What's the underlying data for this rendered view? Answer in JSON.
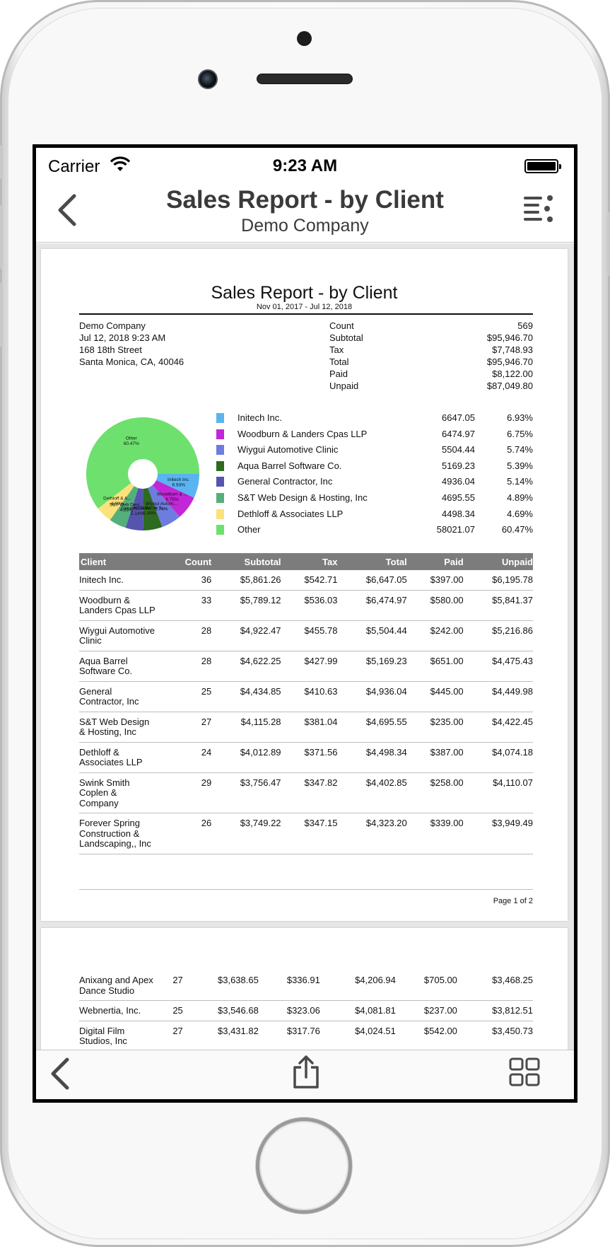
{
  "status_bar": {
    "carrier": "Carrier",
    "time": "9:23 AM"
  },
  "nav": {
    "title": "Sales Report - by Client",
    "subtitle": "Demo Company"
  },
  "report": {
    "title": "Sales Report - by Client",
    "date_range": "Nov 01, 2017 - Jul 12, 2018",
    "company": {
      "name": "Demo Company",
      "datetime": "Jul 12, 2018 9:23 AM",
      "address1": "168 18th Street",
      "address2": "Santa Monica, CA, 40046"
    },
    "summary": [
      {
        "label": "Count",
        "value": "569"
      },
      {
        "label": "Subtotal",
        "value": "$95,946.70"
      },
      {
        "label": "Tax",
        "value": "$7,748.93"
      },
      {
        "label": "Total",
        "value": "$95,946.70"
      },
      {
        "label": "Paid",
        "value": "$8,122.00"
      },
      {
        "label": "Unpaid",
        "value": "$87,049.80"
      }
    ],
    "pie_labels": [
      {
        "name": "Other",
        "pct": "60.47%"
      },
      {
        "name": "Initech Inc.",
        "pct": "6.93%"
      },
      {
        "name": "Woodburn & ...",
        "pct": "6.75%"
      },
      {
        "name": "Wiygui Autom...",
        "pct": "5.74%"
      },
      {
        "name": "Aqua Barrel S...",
        "pct": "5.39%"
      },
      {
        "name": "General Contr...",
        "pct": "5.14%"
      },
      {
        "name": "S&T Web Desi...",
        "pct": "4.89%"
      },
      {
        "name": "Dethloff & A...",
        "pct": "4.69%"
      }
    ],
    "page_label": "Page 1 of 2"
  },
  "chart_data": {
    "type": "pie",
    "labels": [
      "Initech Inc.",
      "Woodburn & Landers Cpas LLP",
      "Wiygui Automotive Clinic",
      "Aqua Barrel Software Co.",
      "General Contractor, Inc",
      "S&T Web Design & Hosting, Inc",
      "Dethloff & Associates LLP",
      "Other"
    ],
    "values": [
      6647.05,
      6474.97,
      5504.44,
      5169.23,
      4936.04,
      4695.55,
      4498.34,
      58021.07
    ],
    "value_labels": [
      "6647.05",
      "6474.97",
      "5504.44",
      "5169.23",
      "4936.04",
      "4695.55",
      "4498.34",
      "58021.07"
    ],
    "percents": [
      "6.93%",
      "6.75%",
      "5.74%",
      "5.39%",
      "5.14%",
      "4.89%",
      "4.69%",
      "60.47%"
    ],
    "colors": [
      "#5ab4f2",
      "#c226d6",
      "#6e7ce0",
      "#2d6b20",
      "#5555b0",
      "#54b07a",
      "#fbe27a",
      "#6ee06e"
    ],
    "donut": true,
    "legend_position": "right"
  },
  "table": {
    "headers": [
      "Client",
      "Count",
      "Subtotal",
      "Tax",
      "Total",
      "Paid",
      "Unpaid"
    ],
    "rows_page1": [
      [
        "Initech Inc.",
        "36",
        "$5,861.26",
        "$542.71",
        "$6,647.05",
        "$397.00",
        "$6,195.78"
      ],
      [
        "Woodburn & Landers Cpas LLP",
        "33",
        "$5,789.12",
        "$536.03",
        "$6,474.97",
        "$580.00",
        "$5,841.37"
      ],
      [
        "Wiygui Automotive Clinic",
        "28",
        "$4,922.47",
        "$455.78",
        "$5,504.44",
        "$242.00",
        "$5,216.86"
      ],
      [
        "Aqua Barrel Software Co.",
        "28",
        "$4,622.25",
        "$427.99",
        "$5,169.23",
        "$651.00",
        "$4,475.43"
      ],
      [
        "General Contractor, Inc",
        "25",
        "$4,434.85",
        "$410.63",
        "$4,936.04",
        "$445.00",
        "$4,449.98"
      ],
      [
        "S&T Web Design & Hosting, Inc",
        "27",
        "$4,115.28",
        "$381.04",
        "$4,695.55",
        "$235.00",
        "$4,422.45"
      ],
      [
        "Dethloff & Associates LLP",
        "24",
        "$4,012.89",
        "$371.56",
        "$4,498.34",
        "$387.00",
        "$4,074.18"
      ],
      [
        "Swink Smith Coplen & Company",
        "29",
        "$3,756.47",
        "$347.82",
        "$4,402.85",
        "$258.00",
        "$4,110.07"
      ],
      [
        "Forever Spring Construction & Landscaping,, Inc",
        "26",
        "$3,749.22",
        "$347.15",
        "$4,323.20",
        "$339.00",
        "$3,949.49"
      ]
    ],
    "rows_page2": [
      [
        "Anixang and Apex Dance Studio",
        "27",
        "$3,638.65",
        "$336.91",
        "$4,206.94",
        "$705.00",
        "$3,468.25"
      ],
      [
        "Webnertia, Inc.",
        "25",
        "$3,546.68",
        "$323.06",
        "$4,081.81",
        "$237.00",
        "$3,812.51"
      ],
      [
        "Digital Film Studios, Inc",
        "27",
        "$3,431.82",
        "$317.76",
        "$4,024.51",
        "$542.00",
        "$3,450.73"
      ]
    ]
  },
  "icons": {
    "nav_back": "chevron-left-icon",
    "nav_menu": "list-menu-icon",
    "toolbar_back": "chevron-left-icon",
    "toolbar_share": "share-icon",
    "toolbar_grid": "grid-icon",
    "wifi": "wifi-icon",
    "battery": "battery-icon"
  }
}
